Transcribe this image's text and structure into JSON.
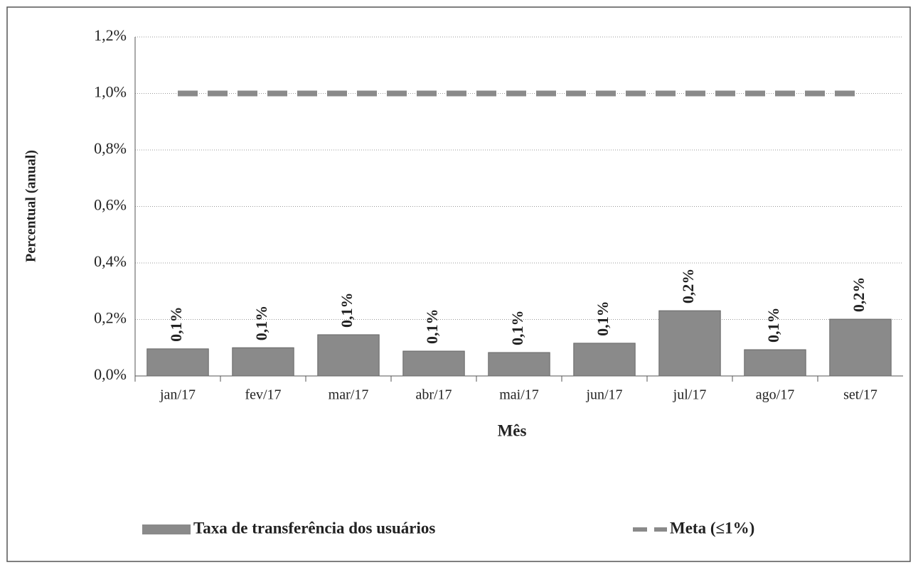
{
  "chart_data": {
    "type": "bar",
    "x_label": "Mês",
    "y_label": "Percentual (anual)",
    "categories": [
      "jan/17",
      "fev/17",
      "mar/17",
      "abr/17",
      "mai/17",
      "jun/17",
      "jul/17",
      "ago/17",
      "set/17"
    ],
    "series": [
      {
        "name": "Taxa de transferência dos usuários",
        "type": "bar",
        "color": "#8a8a8a",
        "values": [
          0.096,
          0.1,
          0.146,
          0.088,
          0.083,
          0.116,
          0.231,
          0.093,
          0.201
        ],
        "value_labels": [
          "0,1%",
          "0,1%",
          "0,1%",
          "0,1%",
          "0,1%",
          "0,1%",
          "0,2%",
          "0,1%",
          "0,2%"
        ]
      },
      {
        "name": "Meta (≤1%)",
        "type": "line",
        "dashed": true,
        "color": "#8a8a8a",
        "values": [
          1,
          1,
          1,
          1,
          1,
          1,
          1,
          1,
          1
        ]
      }
    ],
    "ylim": [
      0,
      1.2
    ],
    "yticks": [
      {
        "value": 0,
        "label": "0,0%"
      },
      {
        "value": 0.2,
        "label": "0,2%"
      },
      {
        "value": 0.4,
        "label": "0,4%"
      },
      {
        "value": 0.6,
        "label": "0,6%"
      },
      {
        "value": 0.8,
        "label": "0,8%"
      },
      {
        "value": 1.0,
        "label": "1,0%"
      },
      {
        "value": 1.2,
        "label": "1,2%"
      }
    ],
    "grid": true,
    "legend": "bottom"
  }
}
